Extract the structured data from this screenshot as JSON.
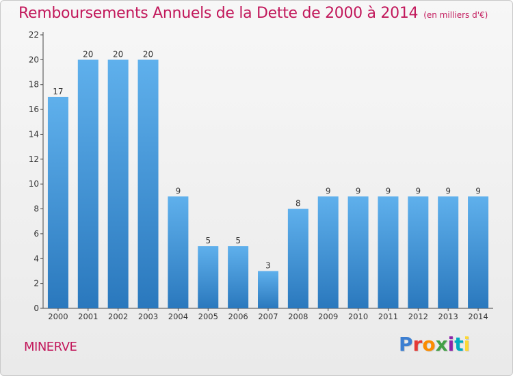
{
  "header": {
    "title": "Remboursements Annuels de la Dette de 2000 à 2014",
    "unit": "(en milliers d'€)"
  },
  "footer": {
    "commune": "MINERVE",
    "logo": {
      "text": "Proxiti",
      "colors": [
        "#3d7fd1",
        "#e53935",
        "#fb8c00",
        "#43a047",
        "#8e24aa",
        "#00acc1",
        "#fdd835"
      ]
    }
  },
  "colors": {
    "bar_light": "#5fb0ec",
    "bar_dark": "#2a78bd",
    "title": "#c2185b"
  },
  "chart_data": {
    "type": "bar",
    "categories": [
      "2000",
      "2001",
      "2002",
      "2003",
      "2004",
      "2005",
      "2006",
      "2007",
      "2008",
      "2009",
      "2010",
      "2011",
      "2012",
      "2013",
      "2014"
    ],
    "values": [
      17,
      20,
      20,
      20,
      9,
      5,
      5,
      3,
      8,
      9,
      9,
      9,
      9,
      9,
      9
    ],
    "ylim": [
      0,
      22
    ],
    "yticks": [
      0,
      2,
      4,
      6,
      8,
      10,
      12,
      14,
      16,
      18,
      20,
      22
    ],
    "grid": false,
    "legend": "none"
  }
}
